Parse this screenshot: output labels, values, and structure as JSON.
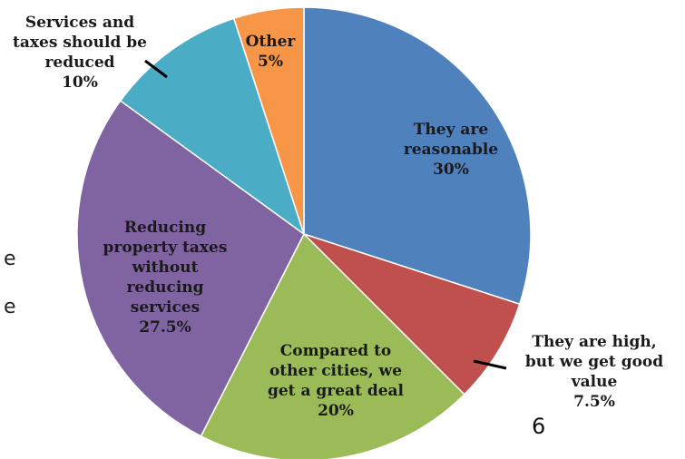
{
  "chart_data": {
    "type": "pie",
    "start_angle_deg": 0,
    "direction": "clockwise",
    "slices": [
      {
        "label_lines": [
          "They are",
          "reasonable",
          "30%"
        ],
        "value": 30,
        "color": "#4F81BD"
      },
      {
        "label_lines": [
          "They are high,",
          "but we get good",
          "value",
          "7.5%"
        ],
        "value": 7.5,
        "color": "#C0504D"
      },
      {
        "label_lines": [
          "Compared to",
          "other cities, we",
          "get a great deal",
          "20%"
        ],
        "value": 20,
        "color": "#9BBB59"
      },
      {
        "label_lines": [
          "Reducing",
          "property taxes",
          "without",
          "reducing",
          "services",
          "27.5%"
        ],
        "value": 27.5,
        "color": "#8064A2"
      },
      {
        "label_lines": [
          "Services and",
          "taxes should be",
          "reduced",
          "10%"
        ],
        "value": 10,
        "color": "#4BACC6"
      },
      {
        "label_lines": [
          "Other",
          "5%"
        ],
        "value": 5,
        "color": "#F79646"
      }
    ]
  },
  "stray_text": {
    "page_number": "6",
    "fragment_1": "e",
    "fragment_2": "e"
  },
  "leader_line_color": "#000000"
}
